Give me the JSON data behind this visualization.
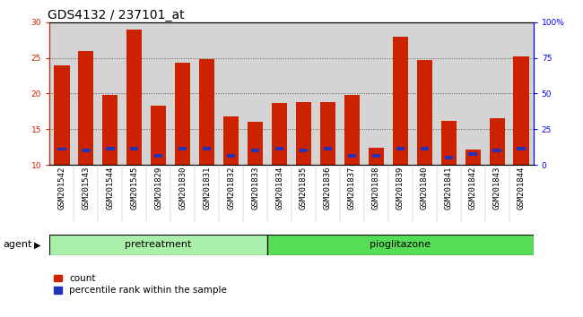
{
  "title": "GDS4132 / 237101_at",
  "categories": [
    "GSM201542",
    "GSM201543",
    "GSM201544",
    "GSM201545",
    "GSM201829",
    "GSM201830",
    "GSM201831",
    "GSM201832",
    "GSM201833",
    "GSM201834",
    "GSM201835",
    "GSM201836",
    "GSM201837",
    "GSM201838",
    "GSM201839",
    "GSM201840",
    "GSM201841",
    "GSM201842",
    "GSM201843",
    "GSM201844"
  ],
  "count_values": [
    24.0,
    26.0,
    19.8,
    29.0,
    18.3,
    24.3,
    24.8,
    16.8,
    16.0,
    18.7,
    18.8,
    18.8,
    19.8,
    12.4,
    28.0,
    24.7,
    16.1,
    12.1,
    16.5,
    25.2
  ],
  "percentile_values": [
    12.2,
    12.0,
    12.3,
    12.3,
    11.3,
    12.3,
    12.3,
    11.3,
    12.0,
    12.3,
    12.0,
    12.3,
    11.3,
    11.3,
    12.3,
    12.3,
    11.0,
    11.5,
    12.0,
    12.3
  ],
  "bar_bottom": 10,
  "ylim_left": [
    10,
    30
  ],
  "ylim_right": [
    0,
    100
  ],
  "yticks_left": [
    10,
    15,
    20,
    25,
    30
  ],
  "yticks_right": [
    0,
    25,
    50,
    75,
    100
  ],
  "ytick_labels_right": [
    "0",
    "25",
    "50",
    "75",
    "100%"
  ],
  "count_color": "#cc2200",
  "percentile_color": "#2233bb",
  "col_bg_color": "#d4d4d4",
  "grid_color": "#555555",
  "pretreatment_color": "#aaf0aa",
  "pioglitazone_color": "#55dd55",
  "pretreatment_label": "pretreatment",
  "pioglitazone_label": "pioglitazone",
  "agent_label": "agent",
  "pretreatment_count": 9,
  "pioglitazone_count": 11,
  "legend_count_label": "count",
  "legend_percentile_label": "percentile rank within the sample",
  "title_fontsize": 10,
  "tick_fontsize": 6.5,
  "agent_fontsize": 8,
  "legend_fontsize": 7.5
}
